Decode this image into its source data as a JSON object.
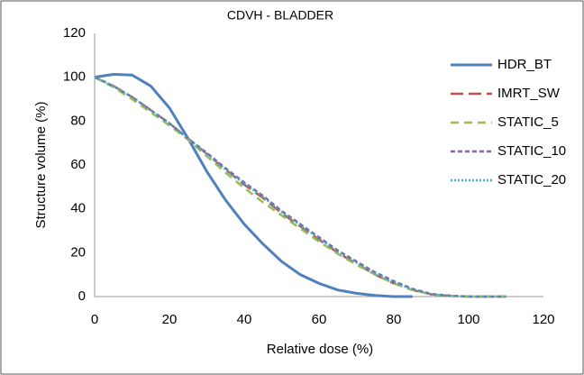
{
  "chart_data": {
    "type": "line",
    "title": "CDVH - BLADDER",
    "xlabel": "Relative dose (%)",
    "ylabel": "Structure volume (%)",
    "x": [
      0,
      5,
      10,
      15,
      20,
      25,
      30,
      35,
      40,
      45,
      50,
      55,
      60,
      65,
      70,
      75,
      80,
      85,
      90,
      95,
      100,
      105,
      110
    ],
    "series": [
      {
        "name": "HDR_BT",
        "color": "#4f81bd",
        "dash": "solid",
        "values": [
          100,
          101.3,
          101,
          96,
          86,
          72,
          57,
          44,
          33,
          24,
          16,
          10,
          6,
          3,
          1.5,
          0.5,
          0,
          0,
          null,
          null,
          null,
          null,
          null
        ]
      },
      {
        "name": "IMRT_SW",
        "color": "#c0504d",
        "dash": "longdash",
        "values": [
          100,
          96,
          91,
          85,
          79,
          72,
          65,
          58,
          51,
          45,
          38,
          32,
          26,
          20,
          15,
          10,
          6,
          3,
          1,
          0.3,
          0,
          0,
          0
        ]
      },
      {
        "name": "STATIC_5",
        "color": "#9bbb59",
        "dash": "dash",
        "values": [
          100,
          95.5,
          90,
          84,
          78,
          71.5,
          64,
          56.5,
          49.5,
          43,
          37,
          31,
          25,
          19.5,
          14.5,
          10,
          6,
          3,
          1,
          0.3,
          0,
          0,
          0
        ]
      },
      {
        "name": "STATIC_10",
        "color": "#8064a2",
        "dash": "shortdash",
        "values": [
          100,
          96,
          91,
          85,
          79,
          72,
          65.5,
          58.5,
          52,
          46,
          39,
          33,
          27,
          21,
          16,
          11,
          7,
          3.5,
          1.2,
          0.4,
          0,
          0,
          0
        ]
      },
      {
        "name": "STATIC_20",
        "color": "#4bacc6",
        "dash": "dot",
        "values": [
          100,
          96,
          91,
          85,
          79,
          72,
          65,
          58,
          51.5,
          45.5,
          38.5,
          32.5,
          26.5,
          20.5,
          15.5,
          10.5,
          6.5,
          3.2,
          1.1,
          0.3,
          0,
          0,
          0
        ]
      }
    ],
    "xlim": [
      0,
      120
    ],
    "xticks": [
      0,
      20,
      40,
      60,
      80,
      100,
      120
    ],
    "ylim": [
      0,
      120
    ],
    "yticks": [
      0,
      20,
      40,
      60,
      80,
      100,
      120
    ],
    "grid": false,
    "legend": "right"
  }
}
